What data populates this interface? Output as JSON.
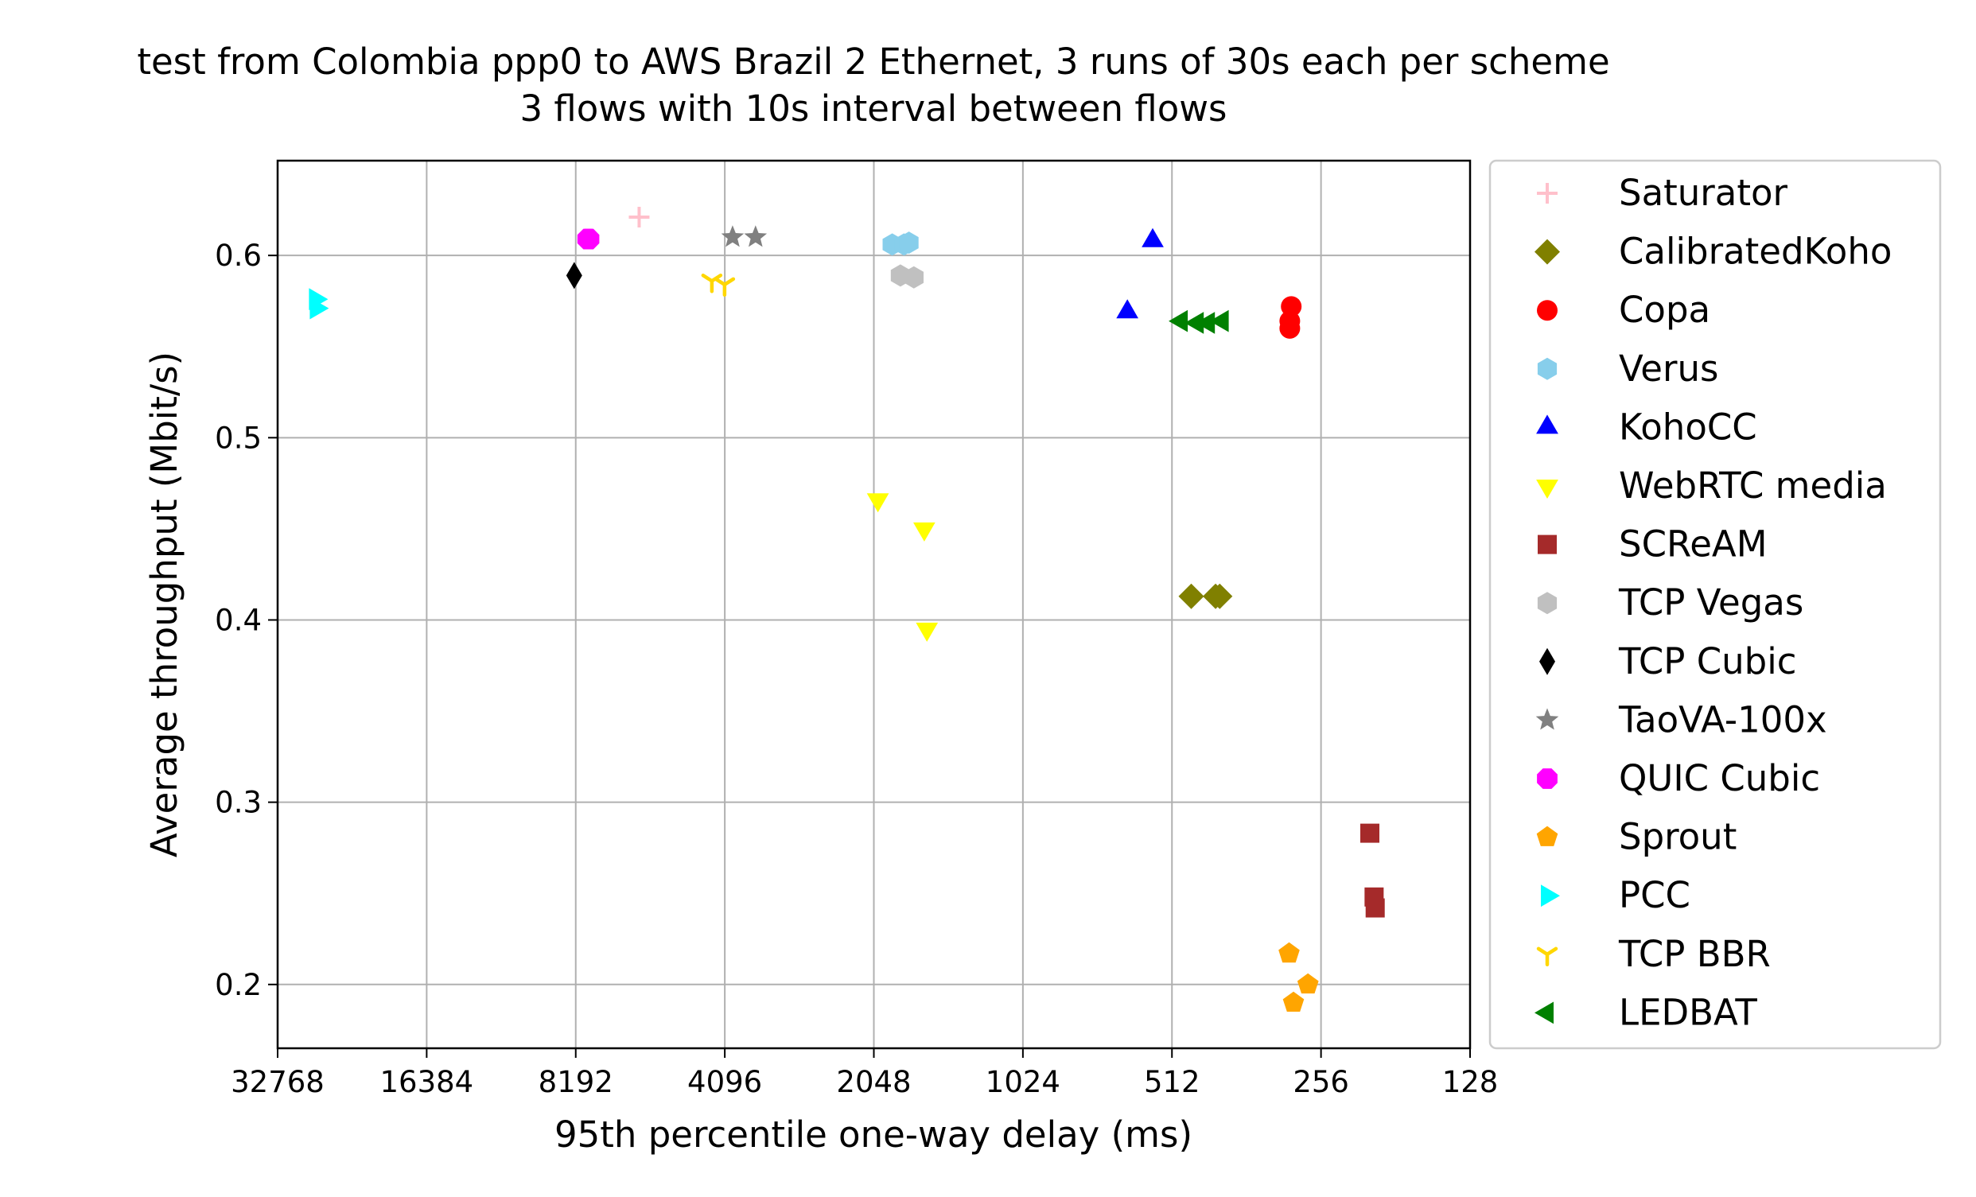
{
  "chart_data": {
    "type": "scatter",
    "title": "test from Colombia ppp0 to AWS Brazil 2 Ethernet, 3 runs of 30s each per scheme",
    "subtitle": "3 flows with 10s interval between flows",
    "xlabel": "95th percentile one-way delay (ms)",
    "ylabel": "Average throughput (Mbit/s)",
    "x_scale": "log2",
    "x_inverted": true,
    "xlim": [
      32768,
      128
    ],
    "ylim": [
      0.165,
      0.652
    ],
    "xticks": [
      32768,
      16384,
      8192,
      4096,
      2048,
      1024,
      512,
      256,
      128
    ],
    "xtick_labels": [
      "32768",
      "16384",
      "8192",
      "4096",
      "2048",
      "1024",
      "512",
      "256",
      "128"
    ],
    "yticks": [
      0.2,
      0.3,
      0.4,
      0.5,
      0.6
    ],
    "ytick_labels": [
      "0.2",
      "0.3",
      "0.4",
      "0.5",
      "0.6"
    ],
    "grid": true,
    "legend_position": "outside right",
    "series": [
      {
        "name": "Saturator",
        "marker": "plus",
        "color": "#ffc0cb",
        "points": [
          [
            6100,
            0.621
          ]
        ]
      },
      {
        "name": "CalibratedKoho",
        "marker": "diamond",
        "color": "#808000",
        "points": [
          [
            468,
            0.413
          ],
          [
            418,
            0.413
          ],
          [
            410,
            0.413
          ]
        ]
      },
      {
        "name": "Copa",
        "marker": "circle",
        "color": "#ff0000",
        "points": [
          [
            294,
            0.572
          ],
          [
            296,
            0.564
          ],
          [
            296,
            0.56
          ]
        ]
      },
      {
        "name": "Verus",
        "marker": "hexagon",
        "color": "#87ceeb",
        "points": [
          [
            1880,
            0.606
          ],
          [
            1780,
            0.606
          ],
          [
            1740,
            0.607
          ]
        ]
      },
      {
        "name": "KohoCC",
        "marker": "triangle-up",
        "color": "#0000ff",
        "points": [
          [
            560,
            0.608
          ],
          [
            630,
            0.569
          ]
        ]
      },
      {
        "name": "WebRTC media",
        "marker": "triangle-down",
        "color": "#ffff00",
        "points": [
          [
            2010,
            0.466
          ],
          [
            1620,
            0.45
          ],
          [
            1600,
            0.395
          ]
        ]
      },
      {
        "name": "SCReAM",
        "marker": "square",
        "color": "#a52a2a",
        "points": [
          [
            204,
            0.283
          ],
          [
            200,
            0.248
          ],
          [
            199,
            0.242
          ]
        ]
      },
      {
        "name": "TCP Vegas",
        "marker": "hexagon",
        "color": "#c0c0c0",
        "points": [
          [
            1810,
            0.589
          ],
          [
            1700,
            0.588
          ]
        ]
      },
      {
        "name": "TCP Cubic",
        "marker": "thin-diamond",
        "color": "#000000",
        "points": [
          [
            8250,
            0.589
          ]
        ]
      },
      {
        "name": "TaoVA-100x",
        "marker": "star",
        "color": "#808080",
        "points": [
          [
            3950,
            0.61
          ],
          [
            3550,
            0.61
          ]
        ]
      },
      {
        "name": "QUIC Cubic",
        "marker": "octagon",
        "color": "#ff00ff",
        "points": [
          [
            7750,
            0.609
          ],
          [
            7700,
            0.609
          ]
        ]
      },
      {
        "name": "Sprout",
        "marker": "pentagon",
        "color": "#ffa500",
        "points": [
          [
            297,
            0.217
          ],
          [
            272,
            0.2
          ],
          [
            291,
            0.19
          ]
        ]
      },
      {
        "name": "PCC",
        "marker": "triangle-right",
        "color": "#00ffff",
        "points": [
          [
            27500,
            0.576
          ],
          [
            27400,
            0.571
          ]
        ]
      },
      {
        "name": "TCP BBR",
        "marker": "tri-down",
        "color": "#ffd700",
        "points": [
          [
            4350,
            0.586
          ],
          [
            4100,
            0.584
          ]
        ]
      },
      {
        "name": "LEDBAT",
        "marker": "triangle-left",
        "color": "#008000",
        "points": [
          [
            490,
            0.564
          ],
          [
            455,
            0.563
          ],
          [
            432,
            0.563
          ],
          [
            405,
            0.564
          ]
        ]
      }
    ]
  }
}
